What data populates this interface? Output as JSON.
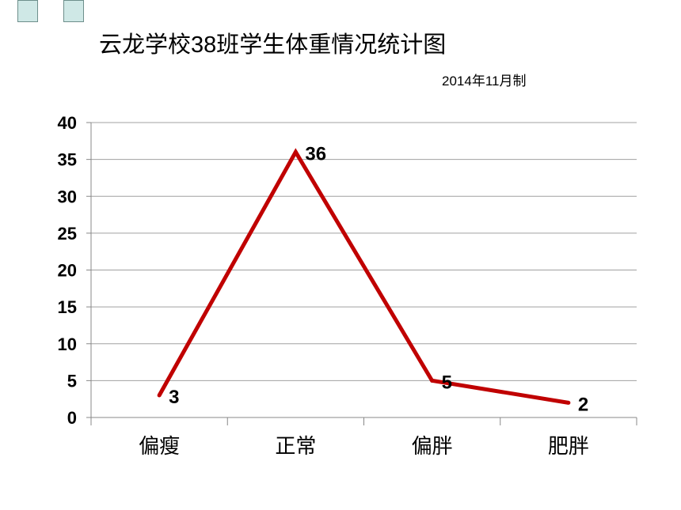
{
  "title": "云龙学校38班学生体重情况统计图",
  "subtitle": "2014年11月制",
  "colors": {
    "line": "#c00000",
    "grid": "#a0a0a0",
    "corner_fill": "#cfe8e6"
  },
  "chart_data": {
    "type": "line",
    "title": "云龙学校38班学生体重情况统计图",
    "categories": [
      "偏瘦",
      "正常",
      "偏胖",
      "肥胖"
    ],
    "series": [
      {
        "values": [
          3,
          36,
          5,
          2
        ]
      }
    ],
    "data_labels": [
      "3",
      "36",
      "5",
      "2"
    ],
    "y_ticks": [
      0,
      5,
      10,
      15,
      20,
      25,
      30,
      35,
      40
    ],
    "ylim": [
      0,
      40
    ],
    "grid": true,
    "legend": "none"
  }
}
